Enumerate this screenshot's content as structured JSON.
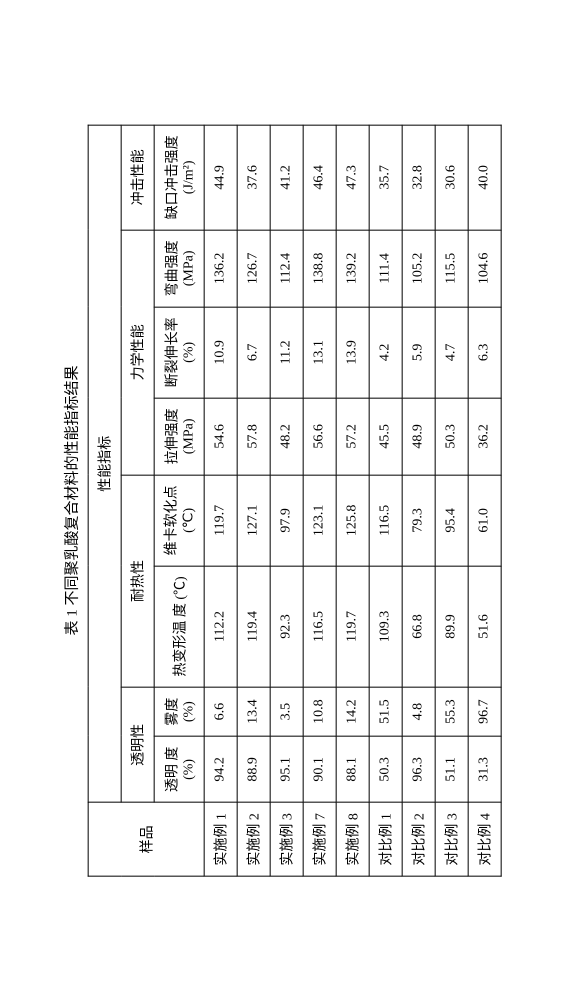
{
  "caption": "表 1 不同聚乳酸复合材料的性能指标结果",
  "headers": {
    "sample": "样品",
    "performance_index": "性能指标",
    "transparency": "透明性",
    "heat_resistance": "耐热性",
    "mechanical": "力学性能",
    "impact": "冲击性能",
    "transparency_deg": "透明 度",
    "transparency_deg_unit": "(%)",
    "haze": "雾度",
    "haze_unit": "(%)",
    "hdt": "热变形温 度 (℃)",
    "vicat": "维卡软化点",
    "vicat_unit": "(℃)",
    "tensile": "拉伸强度",
    "tensile_unit": "(MPa)",
    "elongation": "断裂伸长率",
    "elongation_unit": "(%)",
    "flexural": "弯曲强度",
    "flexural_unit": "(MPa)",
    "notched": "缺口冲击强度",
    "notched_unit": "(J/m²)"
  },
  "rows": [
    {
      "sample": "实施例 1",
      "td": "94.2",
      "haze": "6.6",
      "hdt": "112.2",
      "vicat": "119.7",
      "tensile": "54.6",
      "elong": "10.9",
      "flex": "136.2",
      "impact": "44.9"
    },
    {
      "sample": "实施例 2",
      "td": "88.9",
      "haze": "13.4",
      "hdt": "119.4",
      "vicat": "127.1",
      "tensile": "57.8",
      "elong": "6.7",
      "flex": "126.7",
      "impact": "37.6"
    },
    {
      "sample": "实施例 3",
      "td": "95.1",
      "haze": "3.5",
      "hdt": "92.3",
      "vicat": "97.9",
      "tensile": "48.2",
      "elong": "11.2",
      "flex": "112.4",
      "impact": "41.2"
    },
    {
      "sample": "实施例 7",
      "td": "90.1",
      "haze": "10.8",
      "hdt": "116.5",
      "vicat": "123.1",
      "tensile": "56.6",
      "elong": "13.1",
      "flex": "138.8",
      "impact": "46.4"
    },
    {
      "sample": "实施例 8",
      "td": "88.1",
      "haze": "14.2",
      "hdt": "119.7",
      "vicat": "125.8",
      "tensile": "57.2",
      "elong": "13.9",
      "flex": "139.2",
      "impact": "47.3"
    },
    {
      "sample": "对比例 1",
      "td": "50.3",
      "haze": "51.5",
      "hdt": "109.3",
      "vicat": "116.5",
      "tensile": "45.5",
      "elong": "4.2",
      "flex": "111.4",
      "impact": "35.7"
    },
    {
      "sample": "对比例 2",
      "td": "96.3",
      "haze": "4.8",
      "hdt": "66.8",
      "vicat": "79.3",
      "tensile": "48.9",
      "elong": "5.9",
      "flex": "105.2",
      "impact": "32.8"
    },
    {
      "sample": "对比例 3",
      "td": "51.1",
      "haze": "55.3",
      "hdt": "89.9",
      "vicat": "95.4",
      "tensile": "50.3",
      "elong": "4.7",
      "flex": "115.5",
      "impact": "30.6"
    },
    {
      "sample": "对比例 4",
      "td": "31.3",
      "haze": "96.7",
      "hdt": "51.6",
      "vicat": "61.0",
      "tensile": "36.2",
      "elong": "6.3",
      "flex": "104.6",
      "impact": "40.0"
    }
  ]
}
